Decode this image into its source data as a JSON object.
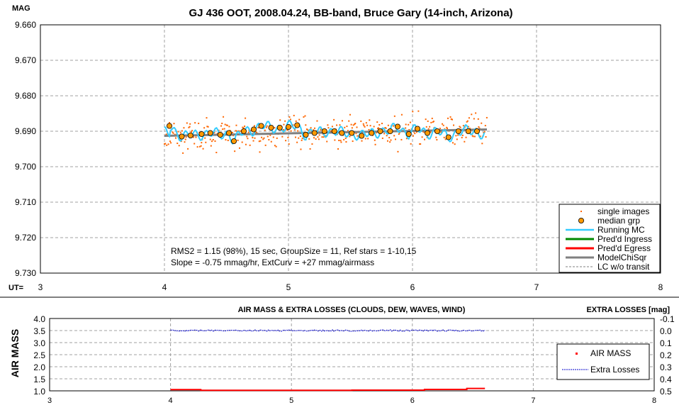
{
  "chart_data": [
    {
      "type": "scatter",
      "title": "GJ 436 OOT, 2008.04.24, BB-band, Bruce Gary (14-inch, Arizona)",
      "ylabel": "MAG",
      "xlabel": "UT=",
      "xlim": [
        3,
        8
      ],
      "ylim": [
        9.73,
        9.66
      ],
      "y_inverted": true,
      "x_ticks": [
        "3",
        "4",
        "5",
        "6",
        "7",
        "8"
      ],
      "y_ticks": [
        "9.660",
        "9.670",
        "9.680",
        "9.690",
        "9.700",
        "9.710",
        "9.720",
        "9.730"
      ],
      "grid": true,
      "legend_position": "bottom-right",
      "legend": [
        "single images",
        "median grp",
        "Running MC",
        "Pred'd Ingress",
        "Pred'd Egress",
        "ModelChiSqr",
        "LC w/o transit"
      ],
      "annotations": [
        "RMS2 = 1.15 (98%), 15 sec, GroupSize = 11, Ref stars = 1-10,15",
        "Slope = -0.75 mmag/hr, ExtCurv = +27 mmag/airmass"
      ],
      "series": [
        {
          "name": "median grp",
          "color": "#ff9900",
          "x": [
            4.04,
            4.14,
            4.21,
            4.3,
            4.37,
            4.45,
            4.52,
            4.56,
            4.64,
            4.72,
            4.78,
            4.86,
            4.93,
            5.0,
            5.07,
            5.14,
            5.21,
            5.29,
            5.37,
            5.43,
            5.51,
            5.59,
            5.67,
            5.74,
            5.82,
            5.88,
            5.97,
            6.04,
            6.12,
            6.2,
            6.29,
            6.37,
            6.45,
            6.52
          ],
          "y": [
            9.6885,
            9.6915,
            9.6912,
            9.6908,
            9.6905,
            9.691,
            9.6905,
            9.6928,
            9.69,
            9.6895,
            9.6885,
            9.689,
            9.689,
            9.6888,
            9.6883,
            9.691,
            9.6905,
            9.69,
            9.69,
            9.6905,
            9.6905,
            9.6913,
            9.6905,
            9.69,
            9.69,
            9.6887,
            9.6908,
            9.6893,
            9.6905,
            9.69,
            9.6917,
            9.69,
            9.69,
            9.69
          ]
        },
        {
          "name": "ModelChiSqr",
          "color": "#808080",
          "x": [
            4.0,
            6.6
          ],
          "y": [
            9.6913,
            9.6895
          ]
        },
        {
          "name": "Running MC",
          "color": "#33ccff"
        },
        {
          "name": "single images",
          "color": "#ff6600",
          "x_range": [
            4.0,
            6.6
          ],
          "y_range": [
            9.682,
            9.699
          ]
        }
      ]
    },
    {
      "type": "line",
      "title": "AIR MASS & EXTRA LOSSES (CLOUDS, DEW, WAVES, WIND)",
      "ylabel": "AIR MASS",
      "y2label": "EXTRA LOSSES [mag]",
      "xlim": [
        3,
        8
      ],
      "ylim": [
        1.0,
        4.0
      ],
      "y2lim": [
        -0.1,
        0.5
      ],
      "y2_inverted": true,
      "x_ticks": [
        "3",
        "4",
        "5",
        "6",
        "7",
        "8"
      ],
      "y_ticks": [
        "4.0",
        "3.5",
        "3.0",
        "2.5",
        "2.0",
        "1.5",
        "1.0"
      ],
      "y2_ticks": [
        "-0.1",
        "0.0",
        "0.1",
        "0.2",
        "0.3",
        "0.4",
        "0.5"
      ],
      "grid": true,
      "legend_position": "bottom-right",
      "legend": [
        "AIR MASS",
        "Extra Losses"
      ],
      "series": [
        {
          "name": "AIR MASS",
          "color": "#ff0000",
          "x": [
            4.0,
            4.25,
            4.25,
            5.5,
            5.5,
            6.1,
            6.1,
            6.45,
            6.45,
            6.6
          ],
          "y": [
            1.05,
            1.05,
            1.02,
            1.02,
            1.03,
            1.03,
            1.06,
            1.06,
            1.1,
            1.1
          ]
        },
        {
          "name": "Extra Losses",
          "color": "#0000cc",
          "x": [
            4.0,
            6.6
          ],
          "y": [
            0.0,
            0.0
          ]
        }
      ]
    }
  ]
}
